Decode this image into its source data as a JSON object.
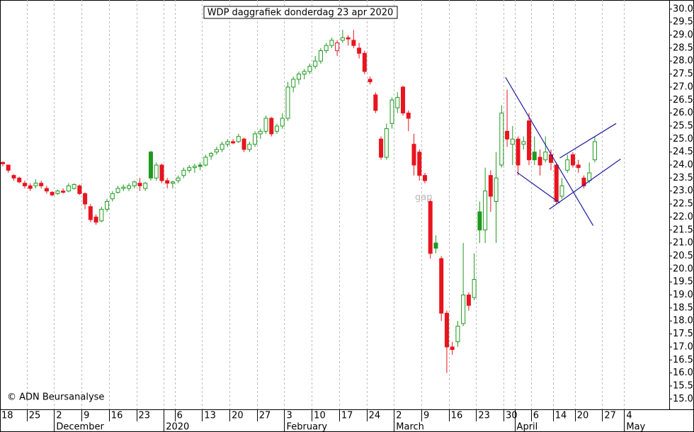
{
  "chart_data": {
    "type": "candlestick",
    "title": "WDP daggrafiek donderdag 23 apr 2020",
    "source": "© ADN Beursanalyse",
    "annotation": "gap",
    "up_color": "#1e9a1e",
    "down_color": "#e8141e",
    "grid": "x",
    "categories": [
      "18",
      null,
      null,
      null,
      null,
      "25",
      null,
      null,
      null,
      null,
      "2",
      null,
      null,
      null,
      null,
      "9",
      null,
      null,
      null,
      null,
      "16",
      null,
      null,
      null,
      null,
      "23",
      null,
      null,
      null,
      null,
      null,
      null,
      "6",
      null,
      null,
      null,
      null,
      "13",
      null,
      null,
      null,
      null,
      "20",
      null,
      null,
      null,
      null,
      "27",
      null,
      null,
      null,
      null,
      "3",
      null,
      null,
      null,
      null,
      "10",
      null,
      null,
      null,
      null,
      "17",
      null,
      null,
      null,
      null,
      "24",
      null,
      null,
      null,
      null,
      "2",
      null,
      null,
      null,
      null,
      "9",
      null,
      null,
      null,
      null,
      "16",
      null,
      null,
      null,
      null,
      "23",
      null,
      null,
      null,
      null,
      "30",
      null,
      null,
      null,
      null,
      "6",
      null,
      null,
      null,
      "14",
      null,
      null,
      null,
      "20",
      null,
      null,
      null,
      null,
      "27",
      null,
      null,
      null,
      "4"
    ],
    "months": [
      null,
      null,
      null,
      null,
      null,
      null,
      null,
      null,
      null,
      null,
      "December",
      null,
      null,
      null,
      null,
      null,
      null,
      null,
      null,
      null,
      null,
      null,
      null,
      null,
      null,
      null,
      null,
      null,
      null,
      null,
      "2020",
      null,
      null,
      null,
      null,
      null,
      null,
      null,
      null,
      null,
      null,
      null,
      null,
      null,
      null,
      null,
      null,
      null,
      null,
      null,
      null,
      null,
      "February",
      null,
      null,
      null,
      null,
      null,
      null,
      null,
      null,
      null,
      null,
      null,
      null,
      null,
      null,
      null,
      null,
      null,
      null,
      null,
      "March",
      null,
      null,
      null,
      null,
      null,
      null,
      null,
      null,
      null,
      null,
      null,
      null,
      null,
      null,
      null,
      null,
      null,
      null,
      null,
      null,
      null,
      "April",
      null,
      null,
      null,
      null,
      null,
      null,
      null,
      null,
      null,
      null,
      null,
      null,
      null,
      null,
      null,
      null,
      null,
      null,
      null,
      "May"
    ],
    "open": [
      24.1,
      24.0,
      23.6,
      23.5,
      23.3,
      23.2,
      23.2,
      23.3,
      23.1,
      22.95,
      22.9,
      23.0,
      23.0,
      23.1,
      23.2,
      22.9,
      22.4,
      22.0,
      21.85,
      22.3,
      22.7,
      22.95,
      23.1,
      23.1,
      23.2,
      23.3,
      23.1,
      24.5,
      23.5,
      24.0,
      23.4,
      23.3,
      23.4,
      23.6,
      23.8,
      23.9,
      24.0,
      24.0,
      24.35,
      24.5,
      24.6,
      24.8,
      24.9,
      24.9,
      25.0,
      24.6,
      24.8,
      25.2,
      25.3,
      25.8,
      25.3,
      25.5,
      25.8,
      27.0,
      27.3,
      27.5,
      27.6,
      27.8,
      28.0,
      28.4,
      28.6,
      28.4,
      28.8,
      28.9,
      28.8,
      28.5,
      28.3,
      27.3,
      26.7,
      25.0,
      24.3,
      25.6,
      26.2,
      27.0,
      26.0,
      24.8,
      24.5,
      23.6,
      22.6,
      21.0,
      20.4,
      18.3,
      17.0,
      17.2,
      17.9,
      19.0,
      18.9,
      22.2,
      21.5,
      23.6,
      22.6,
      24.0,
      25.3,
      24.8,
      25.0,
      24.8,
      25.7,
      24.5,
      24.3,
      24.2,
      24.4,
      24.0,
      22.8,
      23.8,
      24.4,
      24.0,
      23.5,
      23.4,
      24.2,
      null,
      null,
      null,
      null,
      null,
      null
    ],
    "high": [
      24.15,
      24.0,
      23.65,
      23.55,
      23.4,
      23.3,
      23.45,
      23.4,
      23.2,
      23.0,
      23.05,
      23.1,
      23.3,
      23.3,
      23.25,
      22.95,
      22.5,
      22.1,
      22.4,
      22.7,
      23.0,
      23.2,
      23.25,
      23.3,
      23.4,
      23.5,
      23.35,
      24.55,
      24.1,
      24.05,
      23.5,
      23.4,
      23.6,
      23.9,
      24.0,
      24.05,
      24.1,
      24.4,
      24.5,
      24.7,
      24.9,
      25.0,
      25.0,
      25.2,
      25.05,
      24.9,
      25.3,
      25.4,
      25.9,
      25.85,
      25.6,
      26.0,
      27.2,
      27.4,
      27.6,
      27.7,
      27.9,
      28.2,
      28.5,
      28.7,
      28.9,
      28.8,
      29.2,
      29.0,
      29.2,
      28.7,
      28.4,
      27.4,
      26.8,
      25.1,
      25.6,
      26.6,
      26.8,
      27.05,
      26.1,
      25.2,
      24.6,
      23.7,
      22.7,
      21.3,
      20.5,
      18.4,
      17.2,
      18.0,
      21.0,
      19.1,
      20.6,
      22.6,
      23.9,
      23.8,
      24.5,
      26.3,
      26.9,
      25.5,
      25.1,
      25.1,
      26.0,
      25.1,
      24.6,
      25.1,
      24.6,
      24.1,
      23.5,
      24.4,
      24.5,
      24.2,
      23.6,
      24.1,
      25.1,
      null,
      null,
      null,
      null,
      null,
      null
    ],
    "low": [
      23.95,
      23.7,
      23.4,
      23.3,
      23.1,
      23.0,
      23.1,
      23.1,
      22.9,
      22.8,
      22.85,
      22.9,
      22.95,
      23.05,
      22.85,
      22.3,
      21.8,
      21.7,
      21.8,
      22.2,
      22.6,
      22.9,
      23.0,
      23.0,
      23.1,
      23.0,
      23.0,
      23.4,
      23.4,
      23.3,
      23.1,
      23.1,
      23.3,
      23.5,
      23.7,
      23.7,
      23.8,
      23.95,
      24.2,
      24.4,
      24.5,
      24.7,
      24.8,
      24.85,
      24.5,
      24.5,
      24.7,
      25.0,
      25.2,
      25.1,
      25.2,
      25.4,
      25.7,
      26.8,
      27.1,
      27.3,
      27.5,
      27.7,
      27.9,
      28.3,
      28.5,
      28.2,
      28.7,
      28.6,
      28.5,
      28.1,
      27.5,
      27.1,
      26.0,
      24.2,
      24.2,
      25.4,
      26.0,
      25.9,
      25.3,
      23.6,
      23.4,
      23.3,
      20.4,
      20.6,
      18.0,
      16.0,
      16.7,
      17.0,
      17.8,
      18.4,
      18.8,
      21.0,
      21.0,
      22.2,
      21.0,
      23.9,
      24.7,
      24.0,
      23.6,
      24.6,
      24.0,
      24.0,
      23.6,
      24.1,
      23.8,
      22.5,
      22.7,
      23.7,
      23.9,
      23.7,
      23.1,
      23.3,
      24.1,
      null,
      null,
      null,
      null,
      null,
      null
    ],
    "close": [
      24.05,
      23.8,
      23.5,
      23.35,
      23.2,
      23.1,
      23.3,
      23.2,
      23.0,
      22.85,
      23.0,
      22.95,
      23.2,
      23.25,
      22.9,
      22.5,
      21.9,
      21.8,
      22.3,
      22.6,
      22.9,
      23.1,
      23.15,
      23.2,
      23.35,
      23.2,
      23.3,
      23.5,
      24.0,
      23.4,
      23.3,
      23.35,
      23.5,
      23.8,
      23.9,
      23.95,
      23.95,
      24.3,
      24.45,
      24.6,
      24.8,
      24.9,
      24.85,
      25.1,
      24.6,
      24.8,
      25.2,
      25.3,
      25.8,
      25.2,
      25.5,
      25.8,
      27.0,
      27.3,
      27.5,
      27.6,
      27.8,
      28.0,
      28.4,
      28.6,
      28.8,
      28.7,
      28.9,
      28.85,
      28.6,
      28.3,
      27.6,
      27.2,
      26.1,
      24.3,
      25.4,
      26.5,
      26.6,
      26.0,
      25.8,
      24.0,
      23.6,
      23.4,
      20.6,
      20.8,
      18.3,
      17.0,
      16.9,
      17.8,
      19.0,
      18.6,
      19.6,
      21.5,
      23.0,
      22.8,
      23.5,
      26.0,
      25.0,
      25.0,
      24.0,
      24.9,
      24.2,
      24.2,
      24.0,
      24.5,
      24.1,
      22.6,
      23.2,
      24.2,
      24.0,
      23.9,
      23.2,
      23.7,
      24.9,
      null,
      null,
      null,
      null,
      null,
      null
    ],
    "trend_lines": [
      {
        "color": "#1c1ca0",
        "x": [
          91.7,
          107.7
        ],
        "y": [
          27.38,
          21.67
        ]
      },
      {
        "color": "#1c1ca0",
        "x": [
          93.8,
          101.6
        ],
        "y": [
          23.72,
          22.54
        ]
      },
      {
        "color": "#1c1ca0",
        "x": [
          99.7,
          112.7
        ],
        "y": [
          22.3,
          24.23
        ]
      },
      {
        "color": "#1c1ca0",
        "x": [
          101.6,
          111.9
        ],
        "y": [
          24.27,
          25.6
        ]
      }
    ],
    "ylim": [
      14.6,
      30.35
    ],
    "yticks": [
      {
        "value": 15,
        "label": "15.0"
      },
      {
        "value": 15.5,
        "label": "15.5"
      },
      {
        "value": 16,
        "label": "16.0"
      },
      {
        "value": 16.5,
        "label": "16.5"
      },
      {
        "value": 17,
        "label": "17.0"
      },
      {
        "value": 17.5,
        "label": "17.5"
      },
      {
        "value": 18,
        "label": "18.0"
      },
      {
        "value": 18.5,
        "label": "18.5"
      },
      {
        "value": 19,
        "label": "19.0"
      },
      {
        "value": 19.5,
        "label": "19.5"
      },
      {
        "value": 20,
        "label": "20.0"
      },
      {
        "value": 20.5,
        "label": "20.5"
      },
      {
        "value": 21,
        "label": "21.0"
      },
      {
        "value": 21.5,
        "label": "21.5"
      },
      {
        "value": 22,
        "label": "22.0"
      },
      {
        "value": 22.5,
        "label": "22.5"
      },
      {
        "value": 23,
        "label": "23.0"
      },
      {
        "value": 23.5,
        "label": "23.5"
      },
      {
        "value": 24,
        "label": "24.0"
      },
      {
        "value": 24.5,
        "label": "24.5"
      },
      {
        "value": 25,
        "label": "25.0"
      },
      {
        "value": 25.5,
        "label": "25.5"
      },
      {
        "value": 26,
        "label": "26.0"
      },
      {
        "value": 26.5,
        "label": "26.5"
      },
      {
        "value": 27,
        "label": "27.0"
      },
      {
        "value": 27.5,
        "label": "27.5"
      },
      {
        "value": 28,
        "label": "28.0"
      },
      {
        "value": 28.5,
        "label": "28.5"
      },
      {
        "value": 29,
        "label": "29.0"
      },
      {
        "value": 29.5,
        "label": "29.5"
      },
      {
        "value": 30,
        "label": "30.0"
      }
    ]
  }
}
